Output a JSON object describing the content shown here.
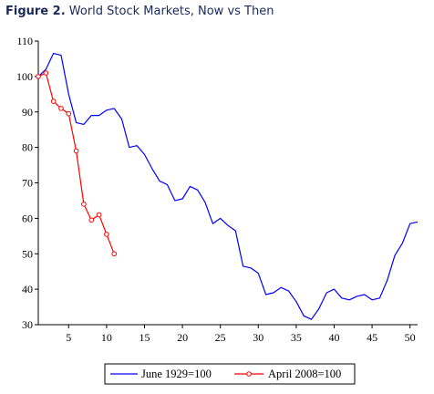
{
  "title": {
    "prefix": "Figure 2.",
    "text": "World Stock Markets, Now vs Then"
  },
  "chart_data": {
    "type": "line",
    "title": "Figure 2. World Stock Markets, Now vs Then",
    "xlabel": "",
    "ylabel": "",
    "xlim": [
      1,
      51
    ],
    "ylim": [
      30,
      110
    ],
    "x_ticks": [
      5,
      10,
      15,
      20,
      25,
      30,
      35,
      40,
      45,
      50
    ],
    "y_ticks": [
      30,
      40,
      50,
      60,
      70,
      80,
      90,
      100,
      110
    ],
    "grid": false,
    "legend_position": "bottom",
    "series": [
      {
        "name": "June 1929=100",
        "color": "#0000ff",
        "marker": "none",
        "x": [
          1,
          2,
          3,
          4,
          5,
          6,
          7,
          8,
          9,
          10,
          11,
          12,
          13,
          14,
          15,
          16,
          17,
          18,
          19,
          20,
          21,
          22,
          23,
          24,
          25,
          26,
          27,
          28,
          29,
          30,
          31,
          32,
          33,
          34,
          35,
          36,
          37,
          38,
          39,
          40,
          41,
          42,
          43,
          44,
          45,
          46,
          47,
          48,
          49,
          50,
          51
        ],
        "values": [
          100,
          102,
          106.5,
          106,
          95,
          87,
          86.5,
          89,
          89,
          90.5,
          91,
          88,
          80,
          80.5,
          78,
          74,
          70.5,
          69.5,
          65,
          65.5,
          69,
          68,
          64.5,
          58.5,
          60,
          58,
          56.5,
          46.5,
          46,
          44.5,
          38.5,
          39,
          40.5,
          39.5,
          36.5,
          32.5,
          31.5,
          34.5,
          39,
          40,
          37.5,
          37,
          38,
          38.5,
          37,
          37.5,
          42.5,
          49.5,
          53,
          58.5,
          59
        ]
      },
      {
        "name": "April 2008=100",
        "color": "#ff0000",
        "marker": "circle",
        "x": [
          1,
          2,
          3,
          4,
          5,
          6,
          7,
          8,
          9,
          10,
          11
        ],
        "values": [
          100,
          101,
          93,
          91,
          89.5,
          79,
          64,
          59.5,
          61,
          55.5,
          50
        ]
      }
    ]
  }
}
